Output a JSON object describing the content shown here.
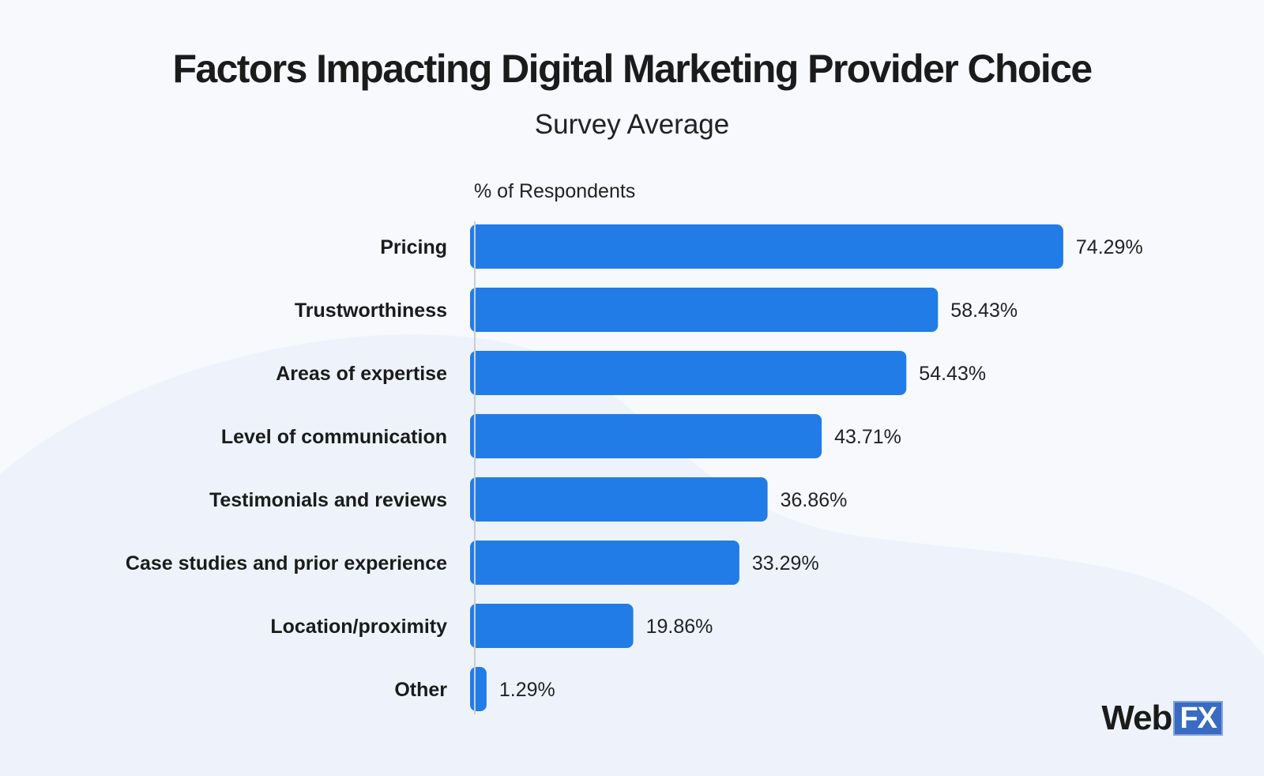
{
  "header": {
    "title": "Factors Impacting Digital Marketing Provider Choice",
    "subtitle": "Survey Average"
  },
  "logo": {
    "part1": "Web",
    "part2": "FX"
  },
  "colors": {
    "bar": "#217ce8",
    "background": "#f7f9fd",
    "text": "#1b1b1b"
  },
  "chart_data": {
    "type": "bar",
    "orientation": "horizontal",
    "title": "Factors Impacting Digital Marketing Provider Choice",
    "subtitle": "Survey Average",
    "xlabel": "% of Respondents",
    "ylabel": "",
    "categories": [
      "Pricing",
      "Trustworthiness",
      "Areas of expertise",
      "Level of communication",
      "Testimonials and reviews",
      "Case studies and prior experience",
      "Location/proximity",
      "Other"
    ],
    "values": [
      74.29,
      58.43,
      54.43,
      43.71,
      36.86,
      33.29,
      19.86,
      1.29
    ],
    "value_labels": [
      "74.29%",
      "58.43%",
      "54.43%",
      "43.71%",
      "36.86%",
      "33.29%",
      "19.86%",
      "1.29%"
    ],
    "xlim": [
      0,
      100
    ],
    "grid": false,
    "legend": "none"
  }
}
